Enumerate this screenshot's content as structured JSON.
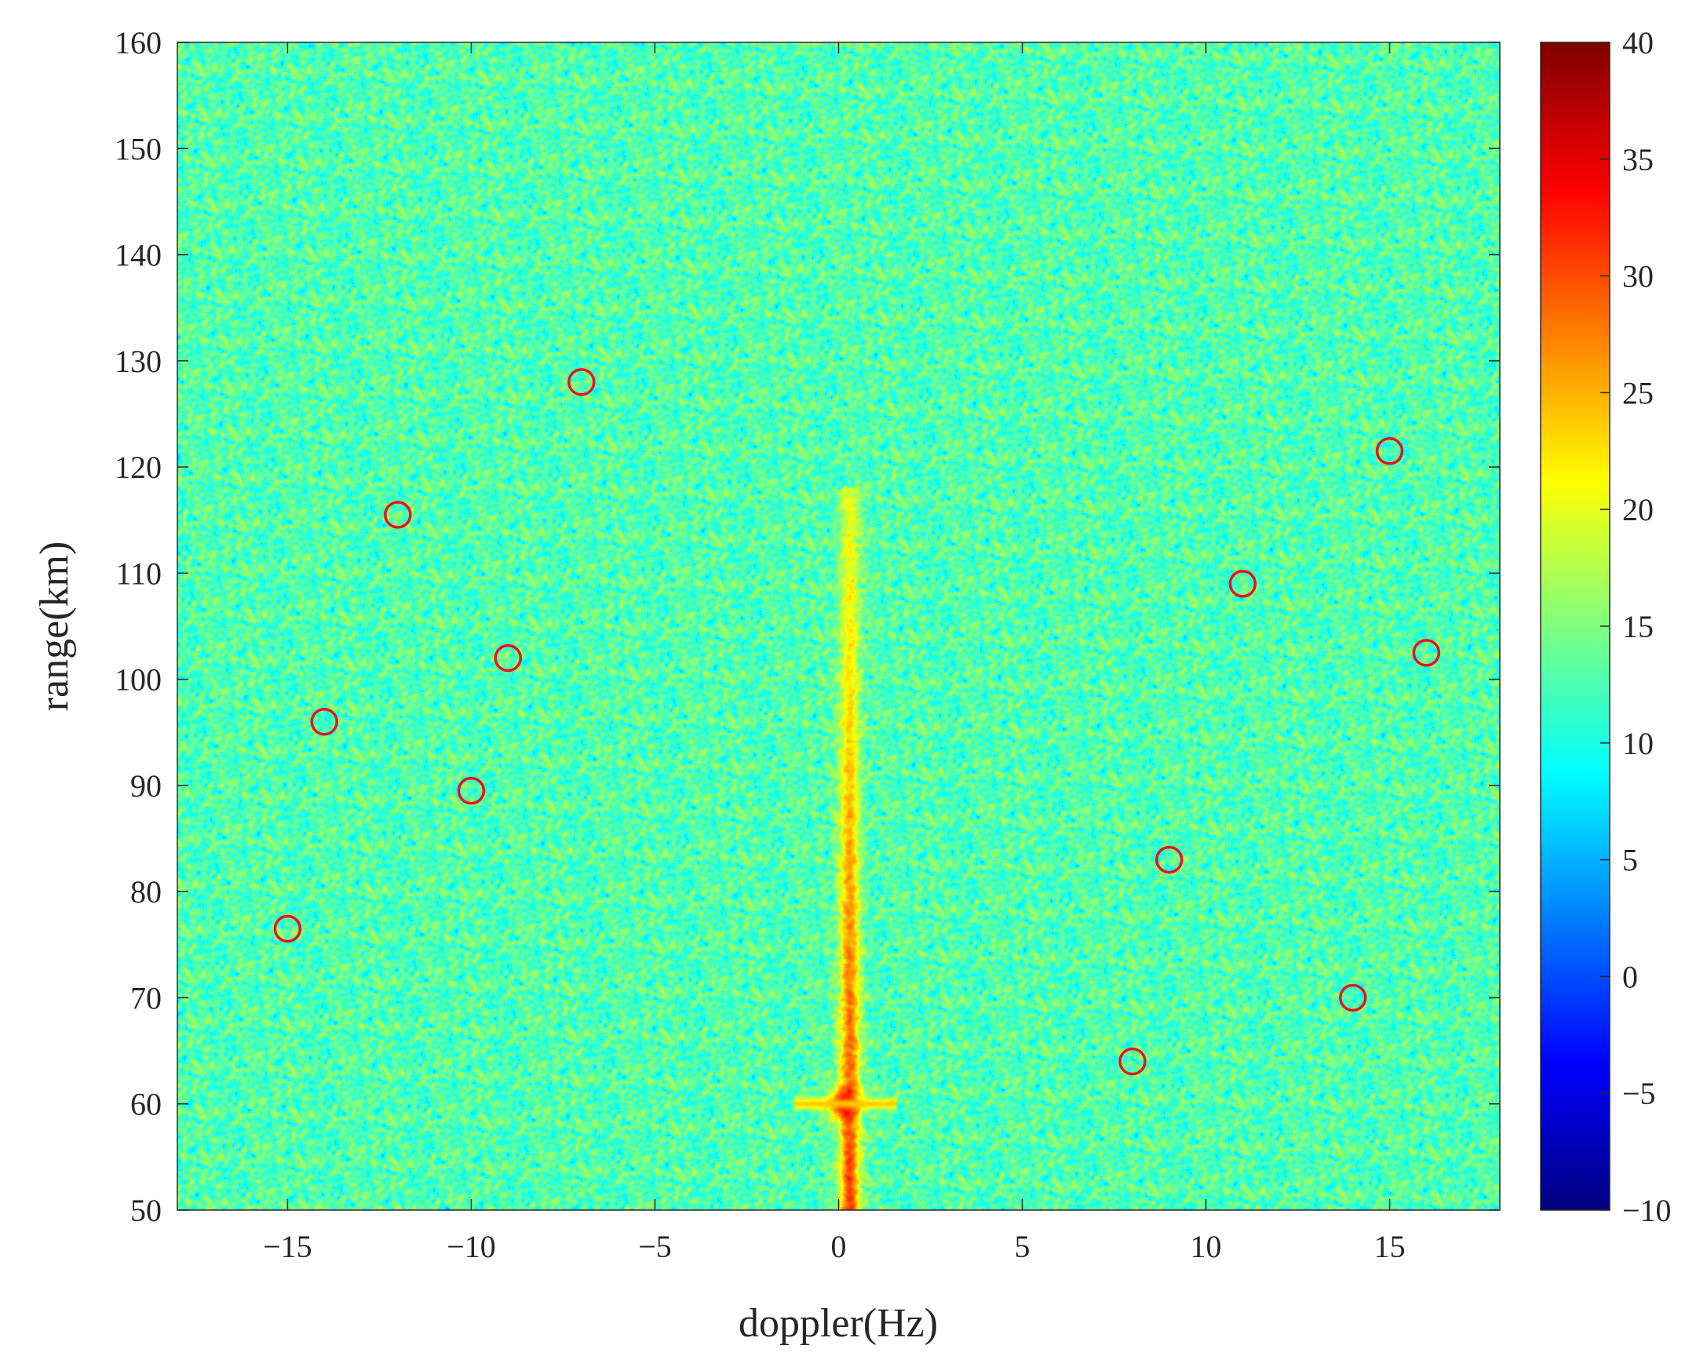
{
  "chart_data": {
    "type": "heatmap",
    "title": "",
    "xlabel": "doppler(Hz)",
    "ylabel": "range(km)",
    "xlim": [
      -18,
      18
    ],
    "ylim": [
      50,
      160
    ],
    "x_ticks": [
      -15,
      -10,
      -5,
      0,
      5,
      10,
      15
    ],
    "x_tick_labels": [
      "−15",
      "−10",
      "−5",
      "0",
      "5",
      "10",
      "15"
    ],
    "y_ticks": [
      50,
      60,
      70,
      80,
      90,
      100,
      110,
      120,
      130,
      140,
      150,
      160
    ],
    "y_tick_labels": [
      "50",
      "60",
      "70",
      "80",
      "90",
      "100",
      "110",
      "120",
      "130",
      "140",
      "150",
      "160"
    ],
    "colorbar": {
      "range": [
        -10,
        40
      ],
      "ticks": [
        -10,
        -5,
        0,
        5,
        10,
        15,
        20,
        25,
        30,
        35,
        40
      ],
      "tick_labels": [
        "−10",
        "−5",
        "0",
        "5",
        "10",
        "15",
        "20",
        "25",
        "30",
        "35",
        "40"
      ],
      "colormap": "jet"
    },
    "field": {
      "background_level": 13,
      "noise_std": 4.2,
      "ridge": {
        "doppler_hz": 0.3,
        "range_from_km": 50,
        "range_to_km": 118,
        "level_near": 31,
        "level_far": 20,
        "peak": {
          "doppler_hz": 0.1,
          "range_km": 60,
          "level": 38
        },
        "cross_spread": {
          "range_km": 60,
          "doppler_from_hz": -1.2,
          "doppler_to_hz": 1.6,
          "level": 24
        }
      }
    },
    "markers": {
      "color": "#e8141c",
      "shape": "circle",
      "points": [
        {
          "x": -7,
          "y": 128
        },
        {
          "x": -12,
          "y": 115.5
        },
        {
          "x": -9,
          "y": 102
        },
        {
          "x": -14,
          "y": 96
        },
        {
          "x": -10,
          "y": 89.5
        },
        {
          "x": -15,
          "y": 76.5
        },
        {
          "x": 15,
          "y": 121.5
        },
        {
          "x": 11,
          "y": 109
        },
        {
          "x": 16,
          "y": 102.5
        },
        {
          "x": 9,
          "y": 83
        },
        {
          "x": 14,
          "y": 70
        },
        {
          "x": 8,
          "y": 64
        }
      ]
    }
  }
}
